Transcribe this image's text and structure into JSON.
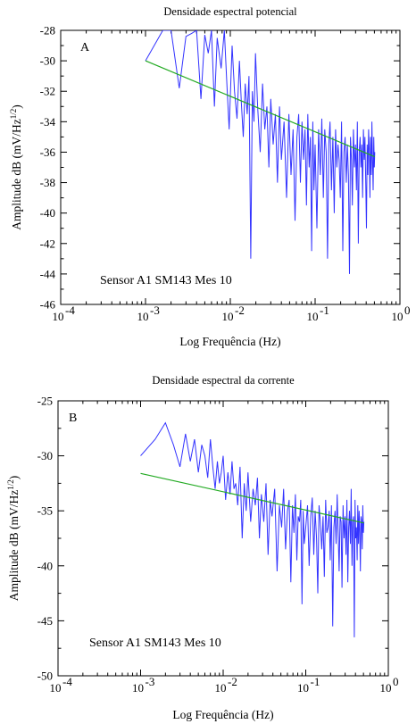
{
  "chart_data": [
    {
      "type": "line",
      "title": "Densidade espectral potencial",
      "panel_label": "A",
      "annotation": "Sensor A1 SM143 Mes 10",
      "xlabel": "Log Frequência (Hz)",
      "ylabel": "Amplitude dB (mV/Hz",
      "ylabel_sup": "1/2",
      "ylabel_tail": ")",
      "xscale": "log",
      "xlim": [
        0.0001,
        1
      ],
      "ylim": [
        -46,
        -28
      ],
      "xticks": [
        {
          "value": 0.0001,
          "base": "10",
          "exp": "-4"
        },
        {
          "value": 0.001,
          "base": "10",
          "exp": "-3"
        },
        {
          "value": 0.01,
          "base": "10",
          "exp": "-2"
        },
        {
          "value": 0.1,
          "base": "10",
          "exp": "-1"
        },
        {
          "value": 1,
          "base": "10",
          "exp": "0"
        }
      ],
      "yticks": [
        {
          "value": -28,
          "label": "-28"
        },
        {
          "value": -30,
          "label": "-30"
        },
        {
          "value": -32,
          "label": "-32"
        },
        {
          "value": -34,
          "label": "-34"
        },
        {
          "value": -36,
          "label": "-36"
        },
        {
          "value": -38,
          "label": "-38"
        },
        {
          "value": -40,
          "label": "-40"
        },
        {
          "value": -42,
          "label": "-42"
        },
        {
          "value": -44,
          "label": "-44"
        },
        {
          "value": -46,
          "label": "-46"
        }
      ],
      "grid": false,
      "series": [
        {
          "color": "#3333ff",
          "x": [
            0.001,
            0.0016,
            0.002,
            0.0025,
            0.003,
            0.0035,
            0.004,
            0.0045,
            0.005,
            0.0055,
            0.006,
            0.0065,
            0.007,
            0.0078,
            0.0085,
            0.009,
            0.0097,
            0.0105,
            0.0112,
            0.012,
            0.0128,
            0.0135,
            0.0142,
            0.015,
            0.0158,
            0.0166,
            0.0174,
            0.0182,
            0.019,
            0.0198,
            0.021,
            0.0225,
            0.024,
            0.0255,
            0.027,
            0.0285,
            0.03,
            0.032,
            0.034,
            0.036,
            0.038,
            0.04,
            0.043,
            0.046,
            0.049,
            0.052,
            0.055,
            0.058,
            0.061,
            0.064,
            0.067,
            0.07,
            0.073,
            0.076,
            0.079,
            0.082,
            0.085,
            0.088,
            0.091,
            0.094,
            0.097,
            0.1,
            0.105,
            0.11,
            0.115,
            0.12,
            0.125,
            0.13,
            0.135,
            0.14,
            0.145,
            0.15,
            0.156,
            0.162,
            0.168,
            0.174,
            0.18,
            0.186,
            0.192,
            0.198,
            0.205,
            0.212,
            0.219,
            0.226,
            0.233,
            0.24,
            0.247,
            0.254,
            0.261,
            0.268,
            0.275,
            0.283,
            0.291,
            0.299,
            0.307,
            0.315,
            0.323,
            0.331,
            0.339,
            0.347,
            0.355,
            0.363,
            0.371,
            0.379,
            0.387,
            0.395,
            0.403,
            0.411,
            0.419,
            0.427,
            0.435,
            0.443,
            0.451,
            0.459,
            0.467,
            0.475,
            0.483,
            0.491,
            0.499,
            0.505
          ],
          "y": [
            -30.0,
            -28.0,
            -28.0,
            -31.8,
            -28.4,
            -28.2,
            -28.0,
            -32.5,
            -28.3,
            -29.5,
            -28.0,
            -33.0,
            -28.5,
            -30.5,
            -28.0,
            -31.0,
            -34.5,
            -29.0,
            -32.0,
            -33.8,
            -30.0,
            -32.8,
            -35.0,
            -31.5,
            -33.5,
            -31.0,
            -43.0,
            -32.0,
            -34.0,
            -29.5,
            -33.0,
            -36.0,
            -31.5,
            -34.5,
            -33.0,
            -37.0,
            -32.5,
            -35.5,
            -33.5,
            -38.0,
            -33.0,
            -36.5,
            -34.0,
            -39.0,
            -33.5,
            -37.5,
            -34.5,
            -40.5,
            -35.0,
            -33.5,
            -38.0,
            -34.0,
            -36.5,
            -34.5,
            -39.5,
            -33.5,
            -37.0,
            -35.0,
            -42.5,
            -34.0,
            -38.5,
            -35.5,
            -41.0,
            -34.5,
            -37.5,
            -33.8,
            -39.0,
            -34.5,
            -36.0,
            -43.0,
            -35.5,
            -34.0,
            -38.5,
            -35.0,
            -40.0,
            -34.5,
            -37.0,
            -35.5,
            -36.5,
            -39.0,
            -34.0,
            -42.5,
            -36.0,
            -35.0,
            -38.0,
            -35.5,
            -37.5,
            -44.0,
            -35.0,
            -36.5,
            -39.5,
            -34.5,
            -37.0,
            -35.5,
            -38.5,
            -34.0,
            -42.0,
            -36.0,
            -35.0,
            -37.0,
            -35.5,
            -39.0,
            -34.5,
            -36.5,
            -35.0,
            -38.0,
            -41.0,
            -35.5,
            -37.5,
            -34.5,
            -36.0,
            -39.0,
            -35.0,
            -37.5,
            -34.0,
            -36.5,
            -38.5,
            -35.0,
            -37.0,
            -36.0
          ]
        },
        {
          "color": "#22aa22",
          "x": [
            0.001,
            0.505
          ],
          "y": [
            -30.0,
            -36.3
          ]
        }
      ]
    },
    {
      "type": "line",
      "title": "Densidade espectral da corrente",
      "panel_label": "B",
      "annotation": "Sensor A1 SM143 Mes 10",
      "xlabel": "Log Frequência (Hz)",
      "ylabel": "Amplitude dB (mV/Hz",
      "ylabel_sup": "1/2",
      "ylabel_tail": ")",
      "xscale": "log",
      "xlim": [
        0.0001,
        1
      ],
      "ylim": [
        -50,
        -25
      ],
      "xticks": [
        {
          "value": 0.0001,
          "base": "10",
          "exp": "-4"
        },
        {
          "value": 0.001,
          "base": "10",
          "exp": "-3"
        },
        {
          "value": 0.01,
          "base": "10",
          "exp": "-2"
        },
        {
          "value": 0.1,
          "base": "10",
          "exp": "-1"
        },
        {
          "value": 1,
          "base": "10",
          "exp": "0"
        }
      ],
      "yticks": [
        {
          "value": -25,
          "label": "-25"
        },
        {
          "value": -30,
          "label": "-30"
        },
        {
          "value": -35,
          "label": "-35"
        },
        {
          "value": -40,
          "label": "-40"
        },
        {
          "value": -45,
          "label": "-45"
        },
        {
          "value": -50,
          "label": "-50"
        }
      ],
      "grid": false,
      "series": [
        {
          "color": "#3333ff",
          "x": [
            0.001,
            0.0015,
            0.002,
            0.0025,
            0.003,
            0.0035,
            0.004,
            0.0045,
            0.005,
            0.0055,
            0.006,
            0.0065,
            0.007,
            0.0075,
            0.008,
            0.0085,
            0.009,
            0.0095,
            0.01,
            0.0107,
            0.0114,
            0.0121,
            0.0128,
            0.0135,
            0.0142,
            0.015,
            0.016,
            0.017,
            0.018,
            0.019,
            0.02,
            0.0215,
            0.023,
            0.0245,
            0.026,
            0.0275,
            0.029,
            0.031,
            0.033,
            0.035,
            0.037,
            0.039,
            0.042,
            0.045,
            0.048,
            0.051,
            0.054,
            0.057,
            0.06,
            0.063,
            0.066,
            0.069,
            0.072,
            0.075,
            0.078,
            0.081,
            0.084,
            0.087,
            0.09,
            0.093,
            0.096,
            0.1,
            0.105,
            0.11,
            0.115,
            0.12,
            0.125,
            0.13,
            0.135,
            0.14,
            0.145,
            0.15,
            0.156,
            0.162,
            0.168,
            0.174,
            0.18,
            0.186,
            0.192,
            0.198,
            0.205,
            0.212,
            0.219,
            0.226,
            0.233,
            0.24,
            0.247,
            0.254,
            0.261,
            0.268,
            0.275,
            0.283,
            0.291,
            0.299,
            0.307,
            0.315,
            0.323,
            0.331,
            0.339,
            0.347,
            0.355,
            0.363,
            0.371,
            0.379,
            0.387,
            0.395,
            0.403,
            0.411,
            0.419,
            0.427,
            0.435,
            0.443,
            0.451,
            0.459,
            0.467,
            0.475,
            0.483,
            0.491,
            0.499,
            0.505
          ],
          "y": [
            -30.0,
            -28.5,
            -27.0,
            -29.0,
            -31.0,
            -28.0,
            -30.5,
            -28.5,
            -31.5,
            -29.0,
            -30.0,
            -32.0,
            -28.5,
            -31.0,
            -33.0,
            -30.5,
            -32.5,
            -31.5,
            -30.0,
            -34.0,
            -31.5,
            -33.5,
            -30.5,
            -33.0,
            -32.5,
            -34.5,
            -31.0,
            -37.5,
            -32.5,
            -35.0,
            -31.5,
            -36.0,
            -33.0,
            -34.5,
            -32.0,
            -37.5,
            -33.5,
            -36.0,
            -32.5,
            -39.0,
            -34.0,
            -35.5,
            -33.0,
            -40.5,
            -34.5,
            -36.5,
            -33.0,
            -38.5,
            -35.0,
            -34.0,
            -41.5,
            -34.5,
            -37.0,
            -33.5,
            -39.5,
            -35.5,
            -36.0,
            -34.0,
            -43.5,
            -35.0,
            -38.0,
            -36.5,
            -34.5,
            -40.0,
            -35.5,
            -33.8,
            -39.0,
            -35.0,
            -37.5,
            -42.5,
            -34.5,
            -36.0,
            -38.5,
            -35.5,
            -41.0,
            -34.0,
            -37.0,
            -36.5,
            -35.0,
            -39.5,
            -34.5,
            -45.5,
            -36.5,
            -35.0,
            -38.0,
            -33.5,
            -37.0,
            -40.5,
            -35.5,
            -36.0,
            -42.0,
            -34.5,
            -37.5,
            -35.5,
            -39.0,
            -34.0,
            -41.5,
            -36.5,
            -35.0,
            -38.0,
            -33.0,
            -40.0,
            -36.0,
            -35.5,
            -46.5,
            -34.0,
            -37.5,
            -36.5,
            -39.5,
            -34.5,
            -38.0,
            -35.0,
            -37.0,
            -40.5,
            -35.5,
            -36.0,
            -38.5,
            -34.5,
            -37.0,
            -36.0
          ]
        },
        {
          "color": "#22aa22",
          "x": [
            0.001,
            0.505
          ],
          "y": [
            -31.6,
            -36.1
          ]
        }
      ]
    }
  ]
}
